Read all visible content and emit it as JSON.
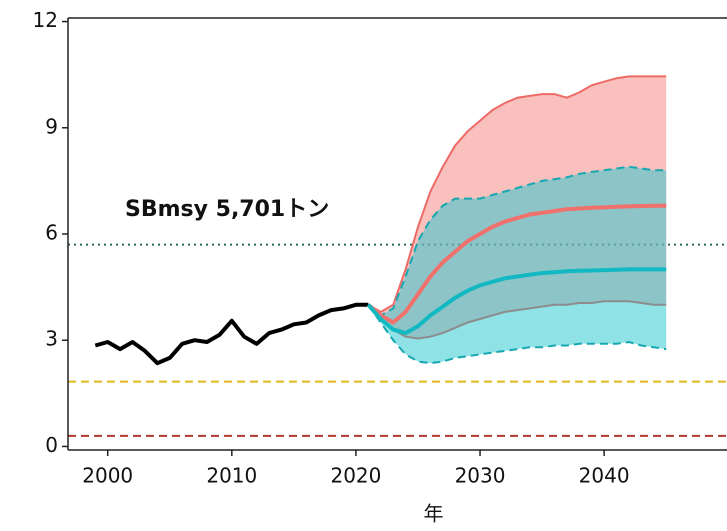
{
  "chart_data": {
    "type": "line",
    "x_label": "年",
    "annotation": "SBmsy 5,701トン",
    "xlim": [
      1996.8,
      2049.9
    ],
    "ylim": [
      -0.1,
      12.1
    ],
    "xticks": [
      2000,
      2010,
      2020,
      2030,
      2040
    ],
    "yticks": [
      0,
      3,
      6,
      9,
      12
    ],
    "hlines": [
      {
        "value": 5.701,
        "color": "#2f6b5a",
        "style": "dotted"
      },
      {
        "value": 1.83,
        "color": "#e0b81c",
        "style": "dashed"
      },
      {
        "value": 0.3,
        "color": "#b03a2e",
        "style": "dashed"
      }
    ],
    "bands": [
      {
        "color": "#f4827e",
        "edge_colors": [
          "#ee6a66",
          "#8c8c8c"
        ],
        "edge_style": "solid",
        "x": [
          2021,
          2022,
          2023,
          2024,
          2025,
          2026,
          2027,
          2028,
          2029,
          2030,
          2031,
          2032,
          2033,
          2034,
          2035,
          2036,
          2037,
          2038,
          2039,
          2040,
          2041,
          2042,
          2043,
          2044,
          2045
        ],
        "upper": [
          4.0,
          3.8,
          4.0,
          5.0,
          6.2,
          7.2,
          7.9,
          8.5,
          8.9,
          9.2,
          9.5,
          9.7,
          9.85,
          9.9,
          9.95,
          9.95,
          9.85,
          10.0,
          10.2,
          10.3,
          10.4,
          10.45,
          10.45,
          10.45,
          10.45
        ],
        "lower": [
          4.0,
          3.6,
          3.3,
          3.1,
          3.05,
          3.1,
          3.2,
          3.35,
          3.5,
          3.6,
          3.7,
          3.8,
          3.85,
          3.9,
          3.95,
          4.0,
          4.0,
          4.05,
          4.05,
          4.1,
          4.1,
          4.1,
          4.05,
          4.0,
          4.0
        ]
      },
      {
        "color": "#1fc7d0",
        "edge_colors": [
          "#16a8b0",
          "#16a8b0"
        ],
        "edge_style": "dashed",
        "x": [
          2021,
          2022,
          2023,
          2024,
          2025,
          2026,
          2027,
          2028,
          2029,
          2030,
          2031,
          2032,
          2033,
          2034,
          2035,
          2036,
          2037,
          2038,
          2039,
          2040,
          2041,
          2042,
          2043,
          2044,
          2045
        ],
        "upper": [
          4.0,
          3.7,
          3.9,
          4.8,
          5.8,
          6.4,
          6.8,
          7.0,
          7.0,
          7.0,
          7.1,
          7.2,
          7.3,
          7.4,
          7.5,
          7.55,
          7.6,
          7.7,
          7.75,
          7.8,
          7.85,
          7.9,
          7.85,
          7.8,
          7.8
        ],
        "lower": [
          4.0,
          3.5,
          3.0,
          2.6,
          2.4,
          2.35,
          2.4,
          2.5,
          2.55,
          2.6,
          2.65,
          2.7,
          2.75,
          2.8,
          2.8,
          2.85,
          2.85,
          2.9,
          2.9,
          2.9,
          2.9,
          2.95,
          2.85,
          2.8,
          2.75
        ]
      }
    ],
    "series": [
      {
        "color": "#000000",
        "x": [
          1999,
          2000,
          2001,
          2002,
          2003,
          2004,
          2005,
          2006,
          2007,
          2008,
          2009,
          2010,
          2011,
          2012,
          2013,
          2014,
          2015,
          2016,
          2017,
          2018,
          2019,
          2020,
          2021
        ],
        "values": [
          2.85,
          2.95,
          2.75,
          2.95,
          2.7,
          2.35,
          2.5,
          2.9,
          3.0,
          2.95,
          3.15,
          3.55,
          3.1,
          2.9,
          3.2,
          3.3,
          3.45,
          3.5,
          3.7,
          3.85,
          3.9,
          4.0,
          4.0
        ]
      },
      {
        "color": "#f0706b",
        "x": [
          2021,
          2022,
          2023,
          2024,
          2025,
          2026,
          2027,
          2028,
          2029,
          2030,
          2031,
          2032,
          2033,
          2034,
          2035,
          2036,
          2037,
          2038,
          2039,
          2040,
          2041,
          2042,
          2043,
          2044,
          2045
        ],
        "values": [
          4.0,
          3.7,
          3.5,
          3.8,
          4.3,
          4.8,
          5.2,
          5.5,
          5.8,
          6.0,
          6.2,
          6.35,
          6.45,
          6.55,
          6.6,
          6.65,
          6.7,
          6.72,
          6.74,
          6.75,
          6.77,
          6.78,
          6.79,
          6.8,
          6.8
        ]
      },
      {
        "color": "#12b8c2",
        "x": [
          2021,
          2022,
          2023,
          2024,
          2025,
          2026,
          2027,
          2028,
          2029,
          2030,
          2031,
          2032,
          2033,
          2034,
          2035,
          2036,
          2037,
          2038,
          2039,
          2040,
          2041,
          2042,
          2043,
          2044,
          2045
        ],
        "values": [
          4.0,
          3.6,
          3.3,
          3.2,
          3.4,
          3.7,
          3.95,
          4.2,
          4.4,
          4.55,
          4.65,
          4.75,
          4.8,
          4.85,
          4.9,
          4.92,
          4.95,
          4.96,
          4.97,
          4.98,
          4.99,
          5.0,
          5.0,
          5.0,
          5.0
        ]
      }
    ]
  }
}
